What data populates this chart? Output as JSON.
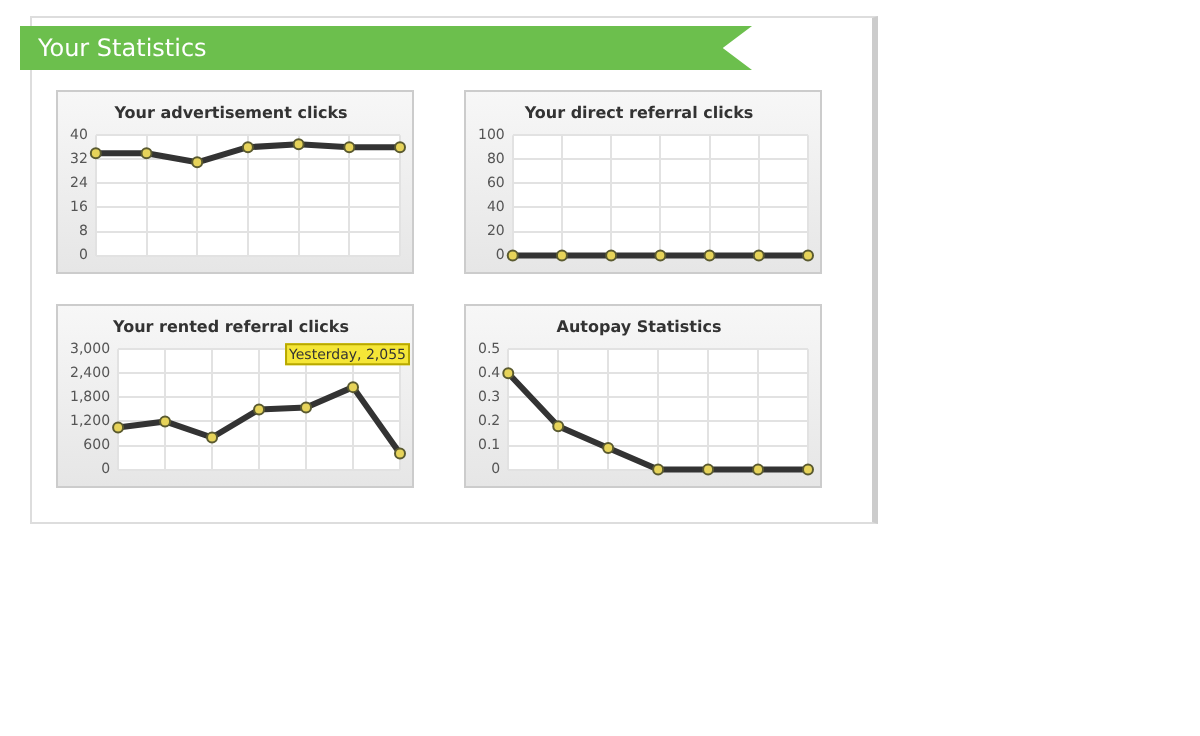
{
  "chart_data": [
    {
      "type": "other",
      "title": "Your Statistics"
    },
    {
      "type": "line",
      "title": "Your advertisement clicks",
      "categories": [
        null,
        null,
        null,
        null,
        null,
        null,
        null
      ],
      "values": [
        34,
        34,
        31,
        36,
        37,
        36,
        36
      ],
      "color": "#333333",
      "ylim": [
        0,
        40
      ],
      "yticks": [
        0,
        8,
        16,
        24,
        32,
        40
      ],
      "grid": true,
      "marker": "circle"
    },
    {
      "type": "line",
      "title": "Your direct referral clicks",
      "categories": [
        null,
        null,
        null,
        null,
        null,
        null,
        null
      ],
      "values": [
        0,
        0,
        0,
        0,
        0,
        0,
        0
      ],
      "color": "#333333",
      "ylim": [
        0,
        100
      ],
      "yticks": [
        0,
        20,
        40,
        60,
        80,
        100
      ],
      "grid": true,
      "marker": "circle"
    },
    {
      "type": "line",
      "title": "Your rented referral clicks",
      "categories": [
        null,
        null,
        null,
        null,
        null,
        null,
        null
      ],
      "values": [
        1050,
        1200,
        800,
        1500,
        1550,
        2055,
        400
      ],
      "color": "#333333",
      "ylim": [
        0,
        3000
      ],
      "yticks": [
        0,
        600,
        {
          "value": 1200,
          "label": "1,200"
        },
        {
          "value": 1800,
          "label": "1,800"
        },
        {
          "value": 2400,
          "label": "2,400"
        },
        {
          "value": 3000,
          "label": "3,000"
        }
      ],
      "grid": true,
      "marker": "circle",
      "annotations": [
        {
          "text": "Yesterday, 2,055",
          "y": 2055
        }
      ]
    },
    {
      "type": "line",
      "title": "Autopay Statistics",
      "categories": [
        null,
        null,
        null,
        null,
        null,
        null,
        null
      ],
      "values": [
        0.4,
        0.18,
        0.09,
        0,
        0,
        0,
        0
      ],
      "color": "#333333",
      "ylim": [
        0,
        0.5
      ],
      "yticks": [
        0,
        0.1,
        0.2,
        0.3,
        0.4,
        0.5
      ],
      "grid": true,
      "marker": "circle"
    }
  ]
}
